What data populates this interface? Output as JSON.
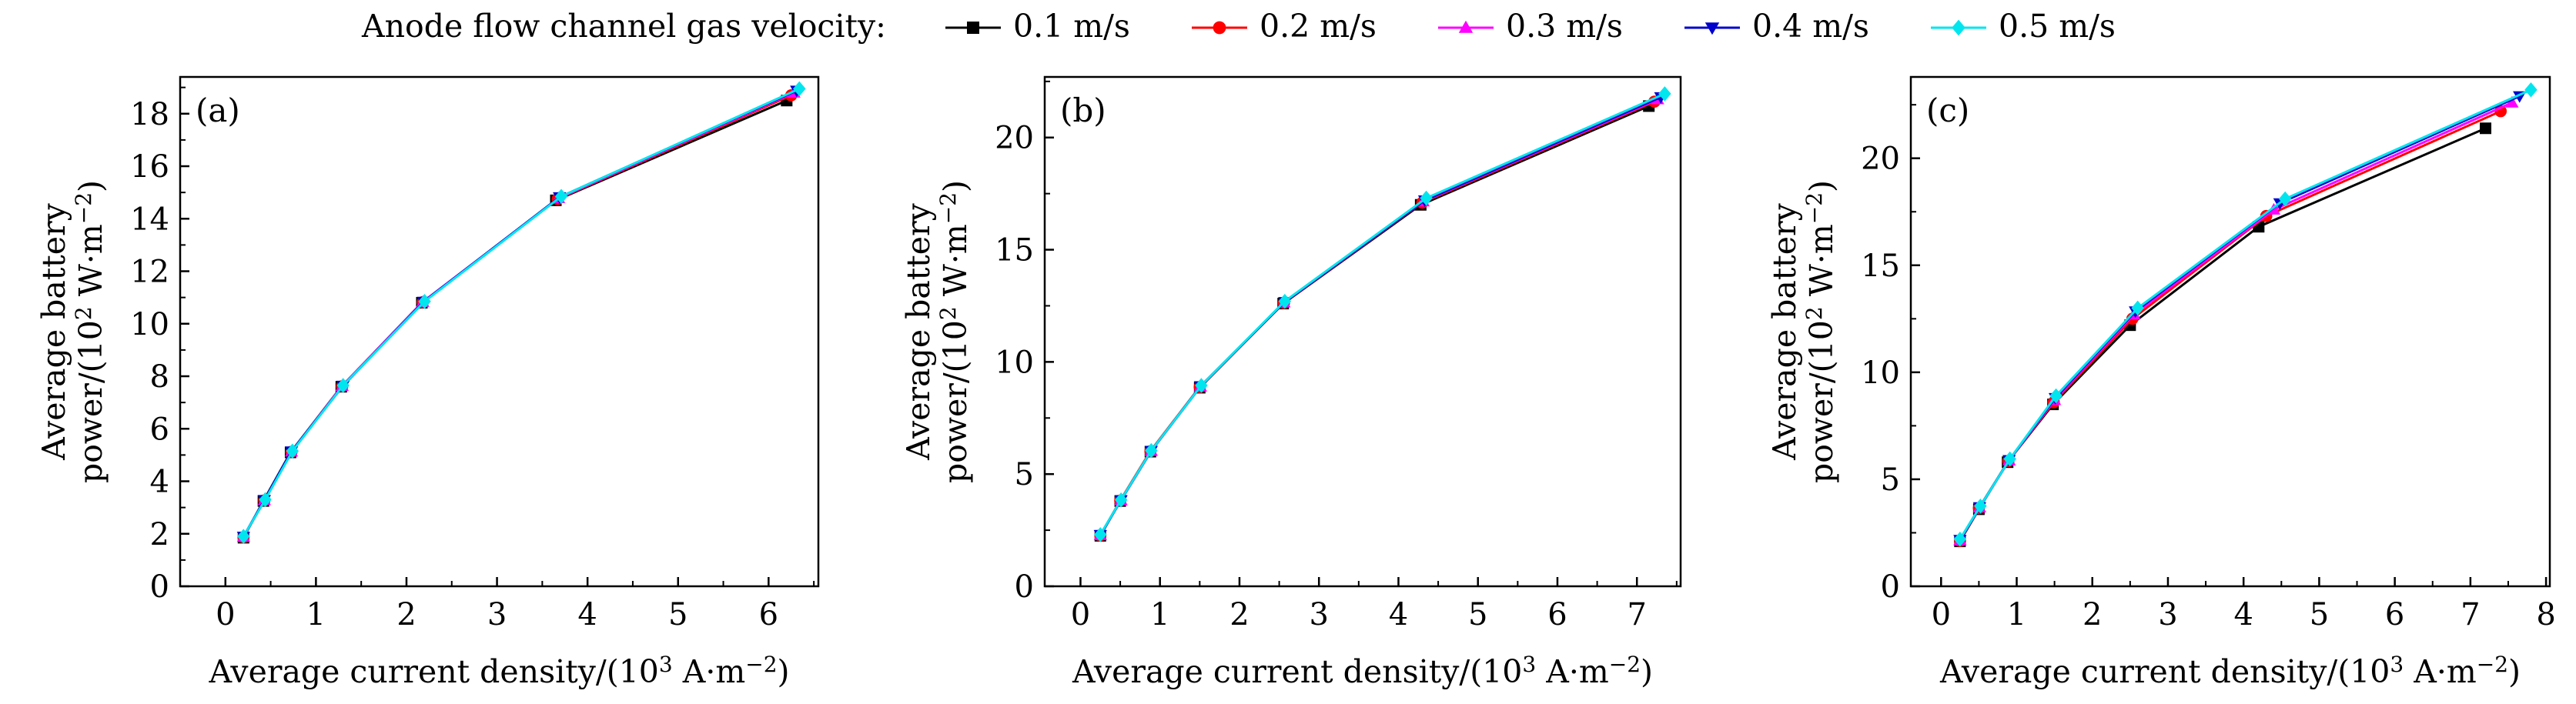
{
  "legend": {
    "title": "Anode flow channel gas velocity:",
    "entries": [
      "0.1 m/s",
      "0.2 m/s",
      "0.3 m/s",
      "0.4 m/s",
      "0.5 m/s"
    ]
  },
  "chart_data": [
    {
      "type": "line",
      "panel_label": "(a)",
      "xlabel_main": "Average current density/(10",
      "xlabel_exp": "3",
      "xlabel_tail": " A·m",
      "xlabel_exp2": "−2",
      "xlabel_close": ")",
      "ylabel_line1": "Average battery",
      "ylabel_main": "power/(10",
      "ylabel_exp": "2",
      "ylabel_tail": " W·m",
      "ylabel_exp2": "−2",
      "ylabel_close": ")",
      "xlim": [
        -0.5,
        6.55
      ],
      "ylim": [
        0,
        19.4
      ],
      "xticks": [
        0,
        1,
        2,
        3,
        4,
        5,
        6
      ],
      "yticks": [
        0,
        2,
        4,
        6,
        8,
        10,
        12,
        14,
        16,
        18
      ],
      "grid": false,
      "series": [
        {
          "name": "0.1 m/s",
          "x": [
            0.2,
            0.42,
            0.72,
            1.28,
            2.17,
            3.65,
            6.2
          ],
          "y": [
            1.85,
            3.25,
            5.1,
            7.6,
            10.8,
            14.7,
            18.5
          ]
        },
        {
          "name": "0.2 m/s",
          "x": [
            0.2,
            0.43,
            0.73,
            1.29,
            2.18,
            3.67,
            6.25
          ],
          "y": [
            1.87,
            3.27,
            5.12,
            7.62,
            10.82,
            14.75,
            18.7
          ]
        },
        {
          "name": "0.3 m/s",
          "x": [
            0.2,
            0.43,
            0.73,
            1.29,
            2.18,
            3.68,
            6.28
          ],
          "y": [
            1.88,
            3.28,
            5.13,
            7.63,
            10.83,
            14.78,
            18.8
          ]
        },
        {
          "name": "0.4 m/s",
          "x": [
            0.2,
            0.43,
            0.73,
            1.3,
            2.19,
            3.69,
            6.31
          ],
          "y": [
            1.89,
            3.29,
            5.14,
            7.64,
            10.84,
            14.82,
            18.88
          ]
        },
        {
          "name": "0.5 m/s",
          "x": [
            0.2,
            0.44,
            0.74,
            1.3,
            2.2,
            3.71,
            6.34
          ],
          "y": [
            1.9,
            3.3,
            5.15,
            7.65,
            10.85,
            14.85,
            18.95
          ]
        }
      ]
    },
    {
      "type": "line",
      "panel_label": "(b)",
      "xlabel_main": "Average current density/(10",
      "xlabel_exp": "3",
      "xlabel_tail": " A·m",
      "xlabel_exp2": "−2",
      "xlabel_close": ")",
      "ylabel_line1": "Average battery",
      "ylabel_main": "power/(10",
      "ylabel_exp": "2",
      "ylabel_tail": " W·m",
      "ylabel_exp2": "−2",
      "ylabel_close": ")",
      "xlim": [
        -0.45,
        7.55
      ],
      "ylim": [
        0,
        22.7
      ],
      "xticks": [
        0,
        1,
        2,
        3,
        4,
        5,
        6,
        7
      ],
      "yticks": [
        0,
        5,
        10,
        15,
        20
      ],
      "grid": false,
      "series": [
        {
          "name": "0.1 m/s",
          "x": [
            0.25,
            0.5,
            0.88,
            1.5,
            2.55,
            4.28,
            7.15
          ],
          "y": [
            2.25,
            3.8,
            6.0,
            8.85,
            12.6,
            17.0,
            21.4
          ]
        },
        {
          "name": "0.2 m/s",
          "x": [
            0.25,
            0.5,
            0.88,
            1.5,
            2.56,
            4.3,
            7.22
          ],
          "y": [
            2.27,
            3.82,
            6.02,
            8.88,
            12.63,
            17.1,
            21.6
          ]
        },
        {
          "name": "0.3 m/s",
          "x": [
            0.25,
            0.51,
            0.89,
            1.51,
            2.56,
            4.31,
            7.26
          ],
          "y": [
            2.28,
            3.83,
            6.03,
            8.9,
            12.65,
            17.15,
            21.7
          ]
        },
        {
          "name": "0.4 m/s",
          "x": [
            0.25,
            0.51,
            0.89,
            1.51,
            2.57,
            4.33,
            7.3
          ],
          "y": [
            2.29,
            3.84,
            6.04,
            8.92,
            12.67,
            17.2,
            21.8
          ]
        },
        {
          "name": "0.5 m/s",
          "x": [
            0.25,
            0.51,
            0.89,
            1.52,
            2.57,
            4.35,
            7.35
          ],
          "y": [
            2.3,
            3.85,
            6.05,
            8.95,
            12.7,
            17.3,
            21.95
          ]
        }
      ]
    },
    {
      "type": "line",
      "panel_label": "(c)",
      "xlabel_main": "Average current density/(10",
      "xlabel_exp": "3",
      "xlabel_tail": " A·m",
      "xlabel_exp2": "−2",
      "xlabel_close": ")",
      "ylabel_line1": "Average battery",
      "ylabel_main": "power/(10",
      "ylabel_exp": "2",
      "ylabel_tail": " W·m",
      "ylabel_exp2": "−2",
      "ylabel_close": ")",
      "xlim": [
        -0.4,
        8.05
      ],
      "ylim": [
        0,
        23.8
      ],
      "xticks": [
        0,
        1,
        2,
        3,
        4,
        5,
        6,
        7,
        8
      ],
      "yticks": [
        0,
        5,
        10,
        15,
        20
      ],
      "grid": false,
      "series": [
        {
          "name": "0.1 m/s",
          "x": [
            0.25,
            0.5,
            0.88,
            1.48,
            2.5,
            4.2,
            7.2
          ],
          "y": [
            2.1,
            3.6,
            5.8,
            8.5,
            12.2,
            16.8,
            21.4
          ]
        },
        {
          "name": "0.2 m/s",
          "x": [
            0.25,
            0.5,
            0.89,
            1.49,
            2.53,
            4.3,
            7.4
          ],
          "y": [
            2.12,
            3.65,
            5.85,
            8.6,
            12.5,
            17.3,
            22.2
          ]
        },
        {
          "name": "0.3 m/s",
          "x": [
            0.25,
            0.51,
            0.9,
            1.5,
            2.55,
            4.4,
            7.55
          ],
          "y": [
            2.15,
            3.68,
            5.88,
            8.7,
            12.7,
            17.6,
            22.6
          ]
        },
        {
          "name": "0.4 m/s",
          "x": [
            0.25,
            0.51,
            0.9,
            1.51,
            2.57,
            4.48,
            7.65
          ],
          "y": [
            2.17,
            3.7,
            5.9,
            8.8,
            12.85,
            17.9,
            22.9
          ]
        },
        {
          "name": "0.5 m/s",
          "x": [
            0.25,
            0.52,
            0.91,
            1.52,
            2.6,
            4.55,
            7.8
          ],
          "y": [
            2.2,
            3.75,
            5.95,
            8.9,
            13.0,
            18.1,
            23.2
          ]
        }
      ]
    }
  ],
  "colors": [
    "#000000",
    "#ff0000",
    "#ff00ff",
    "#0000cd",
    "#00e5ee"
  ],
  "markers": [
    "square",
    "circle",
    "triangle-up",
    "triangle-down",
    "diamond"
  ]
}
